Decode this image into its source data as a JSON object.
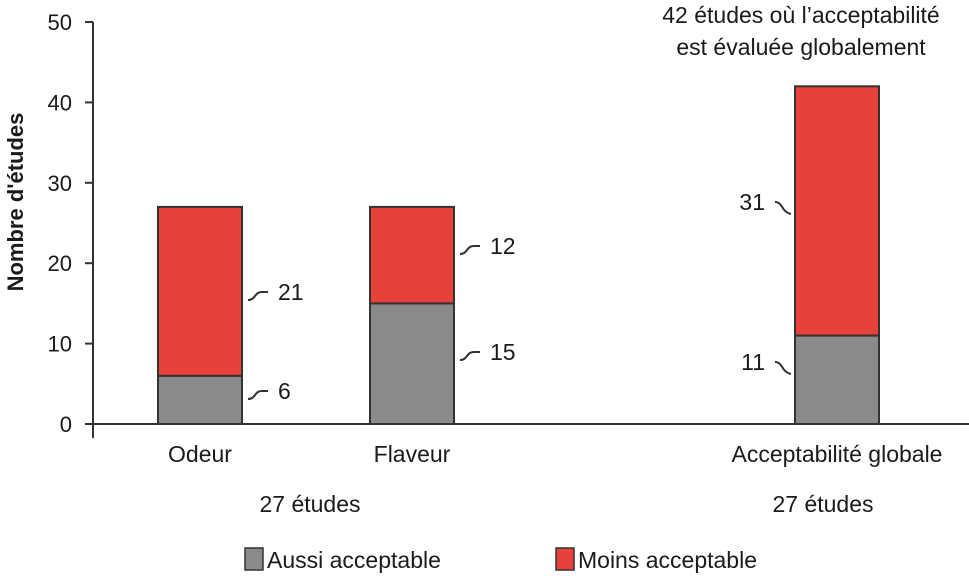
{
  "chart_data": {
    "type": "bar",
    "stacked": true,
    "ylabel": "Nombre d'études",
    "ylim": [
      0,
      50
    ],
    "yticks": [
      0,
      10,
      20,
      30,
      40,
      50
    ],
    "categories": [
      "Odeur",
      "Flaveur",
      "Acceptabilité globale"
    ],
    "series": [
      {
        "name": "Aussi acceptable",
        "color": "#8a8a8a",
        "values": [
          6,
          15,
          11
        ]
      },
      {
        "name": "Moins acceptable",
        "color": "#e8413a",
        "values": [
          21,
          12,
          31
        ]
      }
    ],
    "group_labels": [
      "27 études",
      "27 études"
    ],
    "annotation": [
      "42 études où l’acceptabilité",
      "est évaluée globalement"
    ],
    "legend_position": "bottom"
  }
}
